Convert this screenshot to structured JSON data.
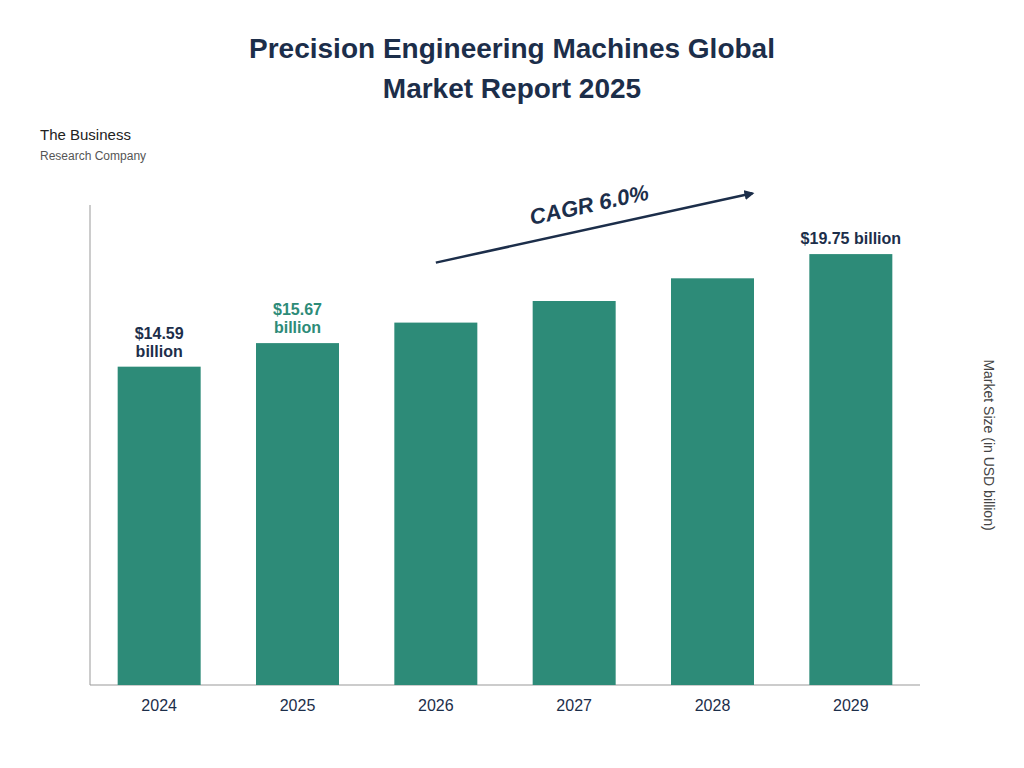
{
  "chart_data": {
    "type": "bar",
    "title": "Precision Engineering Machines Global",
    "subtitle": "Market Report 2025",
    "categories": [
      "2024",
      "2025",
      "2026",
      "2027",
      "2028",
      "2029"
    ],
    "values": [
      14.59,
      15.67,
      16.61,
      17.6,
      18.64,
      19.75
    ],
    "color": "#2d8b78",
    "ylim": [
      0,
      22
    ],
    "ylabel": "Market Size (in USD billion)",
    "tick_labels": "x",
    "grid": false,
    "annotations": [
      {
        "text": "$14.59\nbillion",
        "category": "2024",
        "color": "#1c2e4a"
      },
      {
        "text": "$15.67\nbillion",
        "category": "2025",
        "color": "#2d8b78"
      },
      {
        "text": "$19.75 billion",
        "category": "2029",
        "color": "#1c2e4a"
      },
      {
        "text": "CAGR  6.0%",
        "color": "#1c2e4a",
        "arrow": true
      },
      {
        "text": "The Business"
      },
      {
        "text": "Research Company"
      }
    ]
  }
}
